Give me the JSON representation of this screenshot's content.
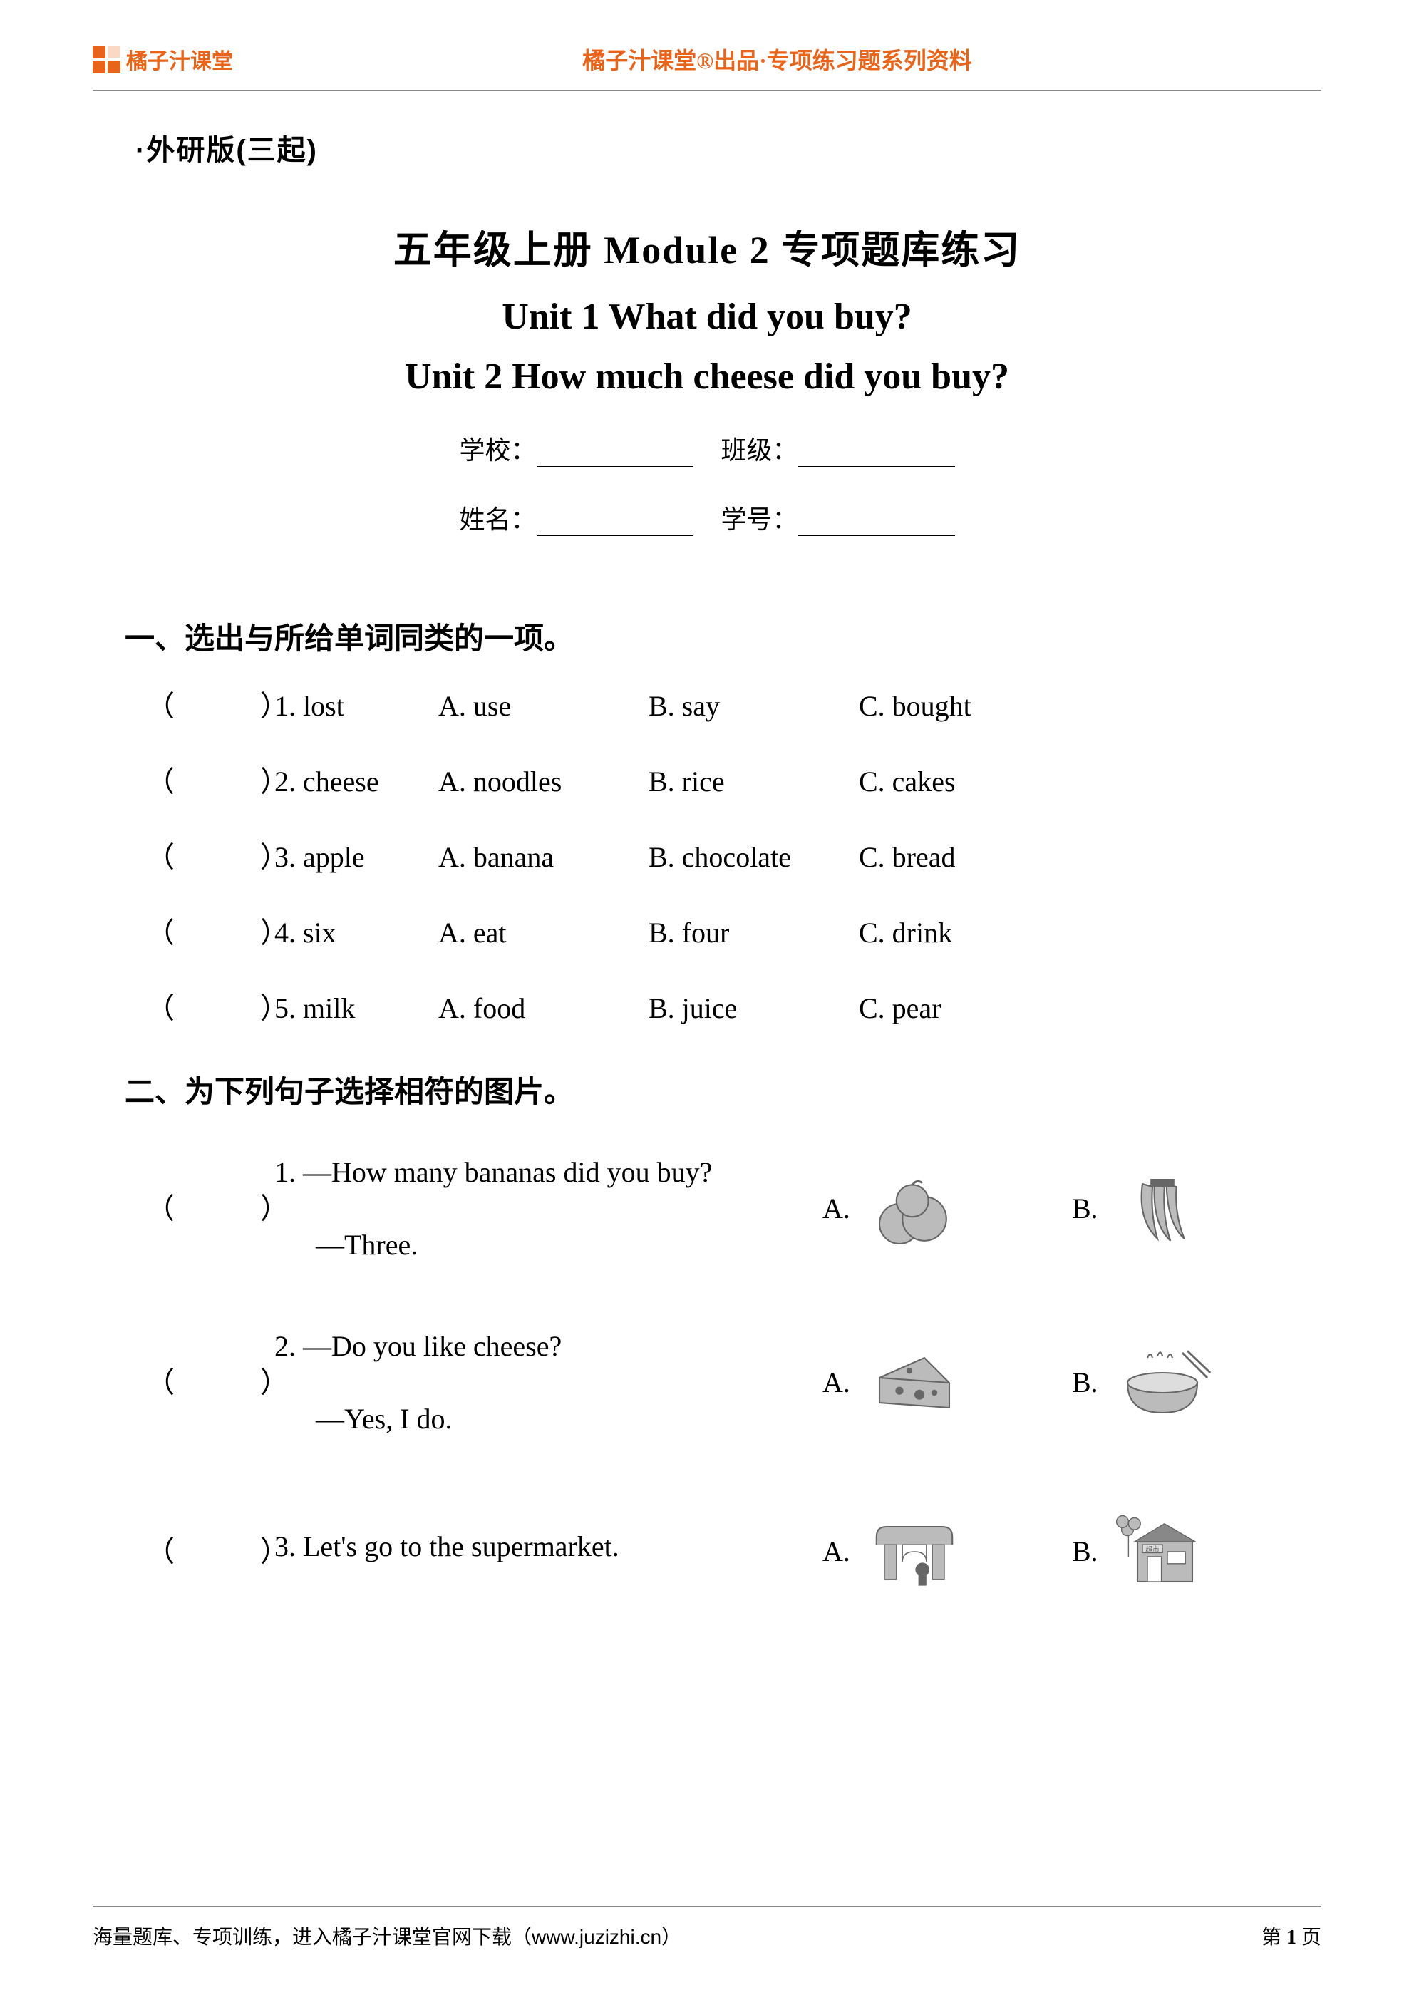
{
  "header": {
    "brand": "橘子汁课堂",
    "title": "橘子汁课堂®出品·专项练习题系列资料",
    "brand_color": "#e8641b"
  },
  "version_note": "·外研版(三起)",
  "main_title": "五年级上册 Module 2 专项题库练习",
  "unit_titles": [
    "Unit 1 What did you buy?",
    "Unit 2 How much cheese did you buy?"
  ],
  "info_fields": {
    "school_label": "学校：",
    "class_label": "班级：",
    "name_label": "姓名：",
    "id_label": "学号："
  },
  "section1": {
    "title": "一、选出与所给单词同类的一项。",
    "paren_left": "（",
    "paren_right": "）",
    "questions": [
      {
        "num": "1. lost",
        "a": "A. use",
        "b": "B. say",
        "c": "C. bought"
      },
      {
        "num": "2. cheese",
        "a": "A. noodles",
        "b": "B. rice",
        "c": "C. cakes"
      },
      {
        "num": "3. apple",
        "a": "A. banana",
        "b": "B. chocolate",
        "c": "C. bread"
      },
      {
        "num": "4. six",
        "a": "A. eat",
        "b": "B. four",
        "c": "C. drink"
      },
      {
        "num": "5. milk",
        "a": "A. food",
        "b": "B. juice",
        "c": "C. pear"
      }
    ]
  },
  "section2": {
    "title": "二、为下列句子选择相符的图片。",
    "paren_left": "（",
    "paren_right": "）",
    "opt_a_label": "A.",
    "opt_b_label": "B.",
    "questions": [
      {
        "num": "1. ",
        "line1": "—How many bananas did you buy?",
        "line2": "—Three.",
        "icon_a": "oranges",
        "icon_b": "bananas"
      },
      {
        "num": "2. ",
        "line1": "—Do you like cheese?",
        "line2": "—Yes, I do.",
        "icon_a": "cheese",
        "icon_b": "noodles"
      },
      {
        "num": "3. ",
        "line1": "Let's go to the supermarket.",
        "line2": "",
        "icon_a": "gate",
        "icon_b": "supermarket"
      }
    ]
  },
  "footer": {
    "left": "海量题库、专项训练，进入橘子汁课堂官网下载（www.juzizhi.cn）",
    "right_prefix": "第 ",
    "right_num": "1",
    "right_suffix": " 页"
  },
  "colors": {
    "text": "#000000",
    "rule": "#888888",
    "accent": "#e8641b",
    "background": "#ffffff",
    "img_gray": "#999999"
  }
}
